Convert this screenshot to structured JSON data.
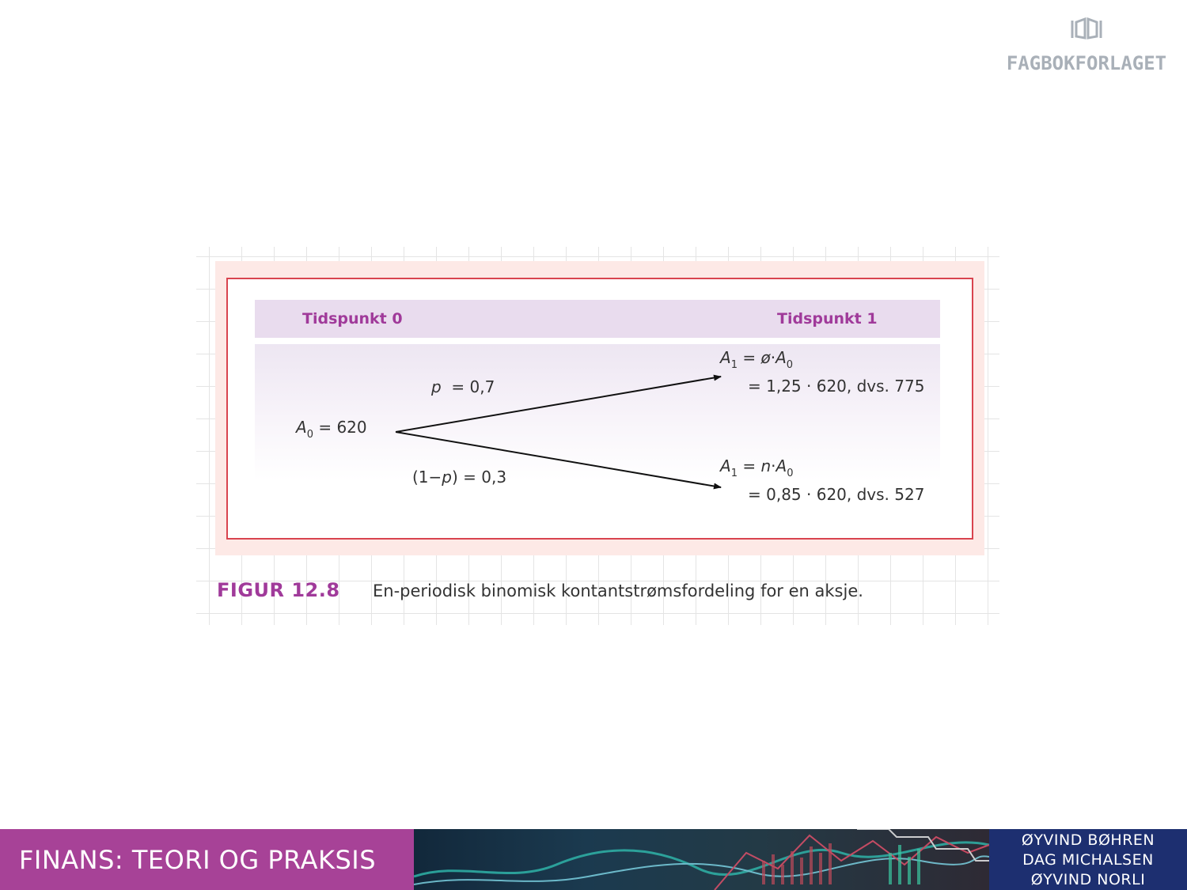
{
  "logo": {
    "text": "FAGBOKFORLAGET",
    "icon": "open-book-icon"
  },
  "figure": {
    "header": {
      "left_label": "Tidspunkt 0",
      "right_label": "Tidspunkt 1"
    },
    "root": {
      "var": "A",
      "sub": "0",
      "rest": " = 620"
    },
    "up_branch": {
      "prob_var": "p",
      "prob_rest": "  = 0,7",
      "line1": {
        "var": "A",
        "sub": "1",
        "eq": " = ",
        "factor": "ø",
        "dot": "·",
        "var2": "A",
        "sub2": "0"
      },
      "line2": "= 1,25 · 620, dvs. 775"
    },
    "down_branch": {
      "prob_prefix": "(1−",
      "prob_var": "p",
      "prob_rest": ") = 0,3",
      "line1": {
        "var": "A",
        "sub": "1",
        "eq": " = ",
        "factor": "n",
        "dot": "·",
        "var2": "A",
        "sub2": "0"
      },
      "line2": "= 0,85 · 620, dvs. 527"
    },
    "caption": {
      "number": "FIGUR 12.8",
      "text": "En-periodisk binomisk kontantstrømsfordeling for en aksje."
    },
    "colors": {
      "accent": "#a03a9a",
      "frame": "#d9444f",
      "panel": "#fde9e6",
      "header": "#e9dcee"
    }
  },
  "banner": {
    "title": "FINANS: TEORI OG PRAKSIS",
    "authors": [
      "ØYVIND BØHREN",
      "DAG MICHALSEN",
      "ØYVIND NORLI"
    ],
    "colors": {
      "title_bg": "#a74297",
      "authors_bg": "#1d2f70"
    }
  }
}
